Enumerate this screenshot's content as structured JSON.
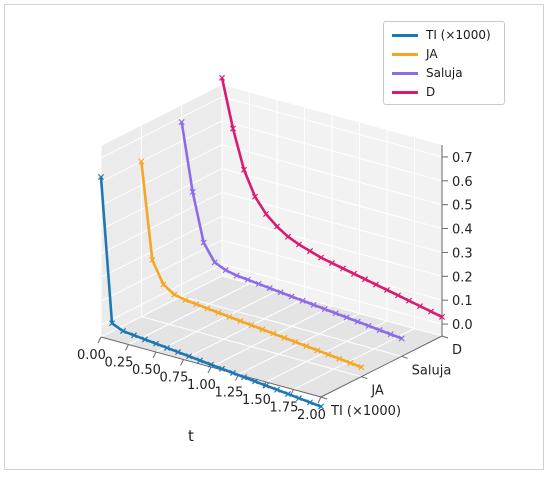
{
  "chart_data": {
    "type": "line",
    "projection": "3d",
    "x": [
      0.0,
      0.1,
      0.2,
      0.3,
      0.4,
      0.5,
      0.6,
      0.7,
      0.8,
      0.9,
      1.0,
      1.1,
      1.2,
      1.3,
      1.4,
      1.5,
      1.6,
      1.7,
      1.8,
      1.9,
      2.0
    ],
    "xlabel": "t",
    "x_ticks": [
      "0.00",
      "0.25",
      "0.50",
      "0.75",
      "1.00",
      "1.25",
      "1.50",
      "1.75",
      "2.00"
    ],
    "xlim": [
      0,
      2
    ],
    "y_categories": [
      "TI (×1000)",
      "JA",
      "Saluja",
      "D"
    ],
    "z_ticks": [
      "0.0",
      "0.1",
      "0.2",
      "0.3",
      "0.4",
      "0.5",
      "0.6",
      "0.7"
    ],
    "zlim": [
      -0.05,
      0.75
    ],
    "grid": true,
    "legend_position": "top-right",
    "marker": "x",
    "series": [
      {
        "name": "TI (×1000)",
        "color": "#1f77b4",
        "values": [
          0.62,
          0.02,
          0.0,
          -0.005,
          -0.01,
          -0.015,
          -0.02,
          -0.025,
          -0.03,
          -0.035,
          -0.04,
          -0.045,
          -0.05,
          -0.055,
          -0.06,
          -0.065,
          -0.07,
          -0.075,
          -0.08,
          -0.085,
          -0.09
        ]
      },
      {
        "name": "JA",
        "color": "#f5a623",
        "values": [
          0.6,
          0.2,
          0.11,
          0.08,
          0.07,
          0.065,
          0.06,
          0.055,
          0.05,
          0.045,
          0.04,
          0.035,
          0.03,
          0.025,
          0.02,
          0.015,
          0.01,
          0.005,
          0.0,
          -0.005,
          -0.01
        ]
      },
      {
        "name": "Saluja",
        "color": "#8d6be8",
        "values": [
          0.68,
          0.4,
          0.2,
          0.13,
          0.11,
          0.1,
          0.095,
          0.09,
          0.085,
          0.08,
          0.075,
          0.07,
          0.065,
          0.06,
          0.055,
          0.05,
          0.045,
          0.04,
          0.035,
          0.03,
          0.025
        ]
      },
      {
        "name": "D",
        "color": "#d81b6e",
        "values": [
          0.78,
          0.58,
          0.42,
          0.32,
          0.26,
          0.22,
          0.19,
          0.17,
          0.155,
          0.14,
          0.13,
          0.12,
          0.11,
          0.1,
          0.09,
          0.08,
          0.07,
          0.06,
          0.05,
          0.04,
          0.03
        ]
      }
    ]
  }
}
